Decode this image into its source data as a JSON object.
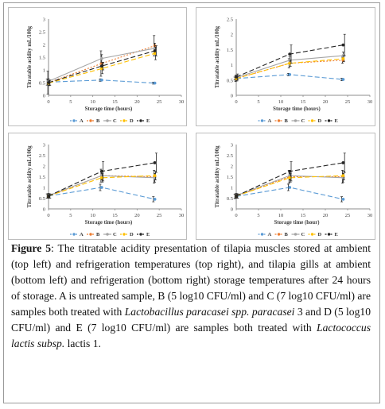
{
  "chart_data": [
    {
      "type": "line",
      "xlabel": "Storage time (hours)",
      "ylabel": "Titratable acidity mL/100g",
      "xlim": [
        0,
        30
      ],
      "ylim": [
        0,
        3
      ],
      "xticks": [
        "0",
        "5",
        "10",
        "15",
        "20",
        "25",
        "30"
      ],
      "yticks": [
        "0",
        "0.5",
        "1",
        "1.5",
        "2",
        "2.5",
        "3"
      ],
      "x": [
        0,
        12,
        24
      ],
      "series": [
        {
          "name": "A",
          "values": [
            0.52,
            0.6,
            0.48
          ],
          "err": [
            0.12,
            0.05,
            0.04
          ],
          "color": "#5b9bd5",
          "dash": "6,3"
        },
        {
          "name": "B",
          "values": [
            0.5,
            1.25,
            1.95
          ],
          "err": [
            0.45,
            0.5,
            0.4
          ],
          "color": "#ed7d31",
          "dash": "2,2"
        },
        {
          "name": "C",
          "values": [
            0.55,
            1.45,
            1.85
          ],
          "err": [
            0.1,
            0.15,
            0.2
          ],
          "color": "#a5a5a5",
          "dash": "none"
        },
        {
          "name": "D",
          "values": [
            0.48,
            1.05,
            1.65
          ],
          "err": [
            0.1,
            0.2,
            0.25
          ],
          "color": "#ffc000",
          "dash": "6,3"
        },
        {
          "name": "E",
          "values": [
            0.5,
            1.15,
            1.75
          ],
          "err": [
            0.1,
            0.15,
            0.2
          ],
          "color": "#262626",
          "dash": "6,3"
        }
      ]
    },
    {
      "type": "line",
      "xlabel": "Storage time (hours)",
      "ylabel": "Titratable acidity mL/100g",
      "xlim": [
        0,
        30
      ],
      "ylim": [
        0,
        2.5
      ],
      "xticks": [
        "0",
        "5",
        "10",
        "15",
        "20",
        "25",
        "30"
      ],
      "yticks": [
        "0",
        "0.5",
        "1",
        "1.5",
        "2",
        "2.5"
      ],
      "x": [
        0,
        12,
        24
      ],
      "series": [
        {
          "name": "A",
          "values": [
            0.55,
            0.68,
            0.52
          ],
          "err": [
            0.05,
            0.04,
            0.04
          ],
          "color": "#5b9bd5",
          "dash": "6,3"
        },
        {
          "name": "B",
          "values": [
            0.55,
            1.05,
            1.15
          ],
          "err": [
            0.1,
            0.15,
            0.1
          ],
          "color": "#ed7d31",
          "dash": "2,2"
        },
        {
          "name": "C",
          "values": [
            0.58,
            1.15,
            1.3
          ],
          "err": [
            0.08,
            0.12,
            0.12
          ],
          "color": "#a5a5a5",
          "dash": "none"
        },
        {
          "name": "D",
          "values": [
            0.55,
            1.05,
            1.2
          ],
          "err": [
            0.08,
            0.1,
            0.1
          ],
          "color": "#ffc000",
          "dash": "6,3"
        },
        {
          "name": "E",
          "values": [
            0.6,
            1.35,
            1.65
          ],
          "err": [
            0.1,
            0.3,
            0.35
          ],
          "color": "#262626",
          "dash": "6,3"
        }
      ]
    },
    {
      "type": "line",
      "xlabel": "Storage time (hours)",
      "ylabel": "Titratable acidity mL/100g",
      "xlim": [
        0,
        30
      ],
      "ylim": [
        0,
        3
      ],
      "xticks": [
        "0",
        "5",
        "10",
        "15",
        "20",
        "25",
        "30"
      ],
      "yticks": [
        "0",
        "0.5",
        "1",
        "1.5",
        "2",
        "2.5",
        "3"
      ],
      "x": [
        0,
        12,
        24
      ],
      "series": [
        {
          "name": "A",
          "values": [
            0.6,
            1.0,
            0.45
          ],
          "err": [
            0.1,
            0.15,
            0.12
          ],
          "color": "#5b9bd5",
          "dash": "6,3"
        },
        {
          "name": "B",
          "values": [
            0.6,
            1.55,
            1.5
          ],
          "err": [
            0.1,
            0.3,
            0.3
          ],
          "color": "#ed7d31",
          "dash": "2,2"
        },
        {
          "name": "C",
          "values": [
            0.62,
            1.55,
            1.45
          ],
          "err": [
            0.1,
            0.2,
            0.2
          ],
          "color": "#a5a5a5",
          "dash": "none"
        },
        {
          "name": "D",
          "values": [
            0.6,
            1.45,
            1.55
          ],
          "err": [
            0.1,
            0.2,
            0.2
          ],
          "color": "#ffc000",
          "dash": "6,3"
        },
        {
          "name": "E",
          "values": [
            0.6,
            1.75,
            2.15
          ],
          "err": [
            0.1,
            0.45,
            0.45
          ],
          "color": "#262626",
          "dash": "6,3"
        }
      ]
    },
    {
      "type": "line",
      "xlabel": "Storage time (hour)",
      "ylabel": "Titratable acidity mL/100g",
      "xlim": [
        0,
        30
      ],
      "ylim": [
        0,
        3
      ],
      "xticks": [
        "0",
        "5",
        "10",
        "15",
        "20",
        "25",
        "30"
      ],
      "yticks": [
        "0",
        "0.5",
        "1",
        "1.5",
        "2",
        "2.5",
        "3"
      ],
      "x": [
        0,
        12,
        24
      ],
      "series": [
        {
          "name": "A",
          "values": [
            0.58,
            1.0,
            0.45
          ],
          "err": [
            0.1,
            0.15,
            0.12
          ],
          "color": "#5b9bd5",
          "dash": "6,3"
        },
        {
          "name": "B",
          "values": [
            0.6,
            1.5,
            1.5
          ],
          "err": [
            0.1,
            0.3,
            0.3
          ],
          "color": "#ed7d31",
          "dash": "2,2"
        },
        {
          "name": "C",
          "values": [
            0.62,
            1.55,
            1.45
          ],
          "err": [
            0.1,
            0.2,
            0.2
          ],
          "color": "#a5a5a5",
          "dash": "none"
        },
        {
          "name": "D",
          "values": [
            0.6,
            1.45,
            1.55
          ],
          "err": [
            0.1,
            0.2,
            0.2
          ],
          "color": "#ffc000",
          "dash": "6,3"
        },
        {
          "name": "E",
          "values": [
            0.6,
            1.75,
            2.15
          ],
          "err": [
            0.1,
            0.45,
            0.45
          ],
          "color": "#262626",
          "dash": "6,3"
        }
      ]
    }
  ],
  "caption": {
    "label": "Figure 5",
    "t1": ": The titratable acidity presentation of tilapia muscles stored at ambient (top left) and refrigeration temperatures (top right), and tilapia gills at ambient (bottom left) and refrigeration (bottom right) storage temperatures after 24 hours of storage. A is untreated sample, B (5 log10 CFU/ml) and C (7 log10 CFU/ml) are samples both treated with ",
    "i1": "Lactobacillus paracasei spp. paracasei",
    "t2": " 3 and D (5 log10 CFU/ml) and E (7 log10 CFU/ml) are samples both treated with ",
    "i2": "Lactococcus lactis subsp.",
    "t3": " lactis 1."
  }
}
